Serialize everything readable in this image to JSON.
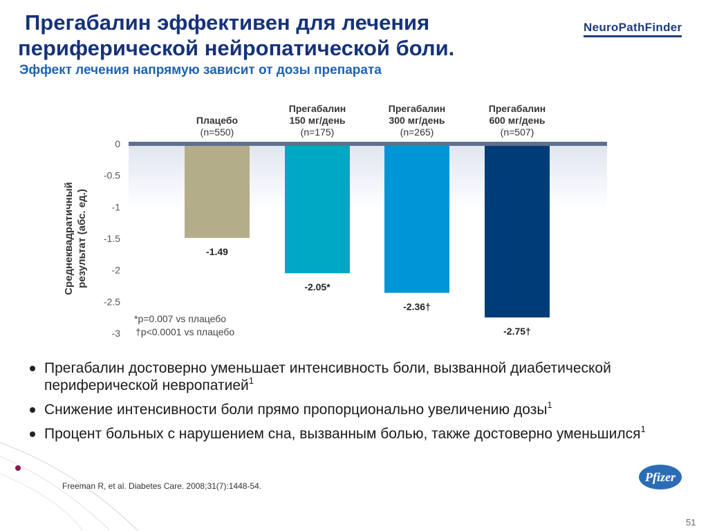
{
  "title_line1": "Прегабалин эффективен для лечения",
  "title_line2": "периферической нейропатической боли.",
  "subtitle": "Эффект лечения напрямую зависит от дозы препарата",
  "logo": {
    "part1": "Neuro",
    "part2": "Path",
    "part3": "Finder"
  },
  "chart_data": {
    "type": "bar",
    "ylabel_line1": "Среднеквадратичный",
    "ylabel_line2": "результат  (абс. ед.)",
    "ylim": [
      -3,
      0
    ],
    "yticks": [
      0,
      -0.5,
      -1,
      -1.5,
      -2,
      -2.5,
      -3
    ],
    "ytick_labels": [
      "0",
      "-0.5",
      "-1",
      "-1.5",
      "-2",
      "-2.5",
      "-3"
    ],
    "categories": [
      {
        "lines": [
          "Плацебо"
        ],
        "n": "(n=550)"
      },
      {
        "lines": [
          "Прегабалин",
          "150 мг/день"
        ],
        "n": "(n=175)"
      },
      {
        "lines": [
          "Прегабалин",
          "300 мг/день"
        ],
        "n": "(n=265)"
      },
      {
        "lines": [
          "Прегабалин",
          "600 мг/день"
        ],
        "n": "(n=507)"
      }
    ],
    "values": [
      -1.49,
      -2.05,
      -2.36,
      -2.75
    ],
    "value_labels": [
      "-1.49",
      "-2.05*",
      "-2.36†",
      "-2.75†"
    ],
    "colors": [
      "#b4ad8a",
      "#00a8c4",
      "#0096d6",
      "#003c78"
    ],
    "footnotes": [
      "*p=0.007 vs плацебо",
      "†p<0.0001 vs плацебо"
    ]
  },
  "bullets": [
    {
      "text": "Прегабалин достоверно уменьшает интенсивность боли, вызванной диабетической периферической невропатией",
      "sup": "1"
    },
    {
      "text": "Снижение интенсивности боли прямо пропорционально увеличению дозы",
      "sup": "1"
    },
    {
      "text": "Процент больных с нарушением сна, вызванным болью, также достоверно уменьшился",
      "sup": "1"
    }
  ],
  "reference": "Freeman R, et al. Diabetes Care. 2008;31(7):1448-54.",
  "pfizer": "Pfizer",
  "page_number": "51"
}
